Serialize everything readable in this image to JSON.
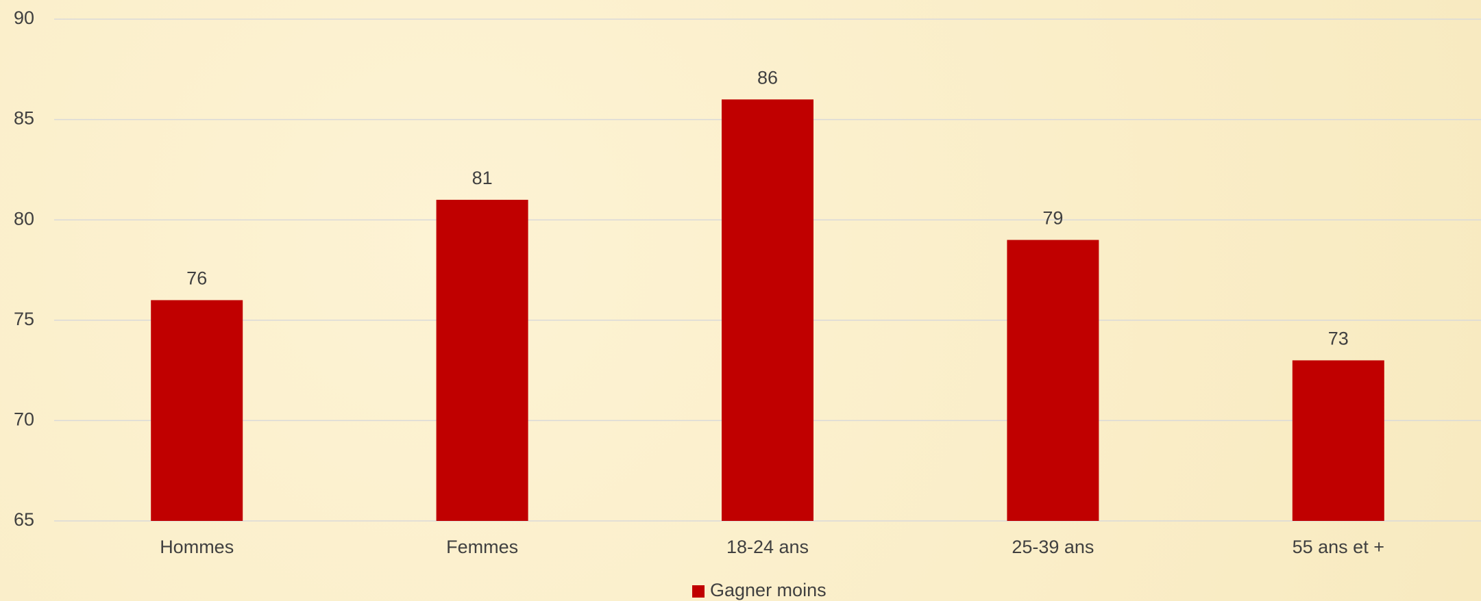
{
  "chart_data": {
    "type": "bar",
    "categories": [
      "Hommes",
      "Femmes",
      "18-24 ans",
      "25-39 ans",
      "55 ans et +"
    ],
    "series": [
      {
        "name": "Gagner moins",
        "color": "#c00000",
        "values": [
          76,
          81,
          86,
          79,
          73
        ]
      }
    ],
    "ylim": [
      65,
      90
    ],
    "yticks": [
      65,
      70,
      75,
      80,
      85,
      90
    ],
    "grid": true,
    "legend": "bottom"
  }
}
